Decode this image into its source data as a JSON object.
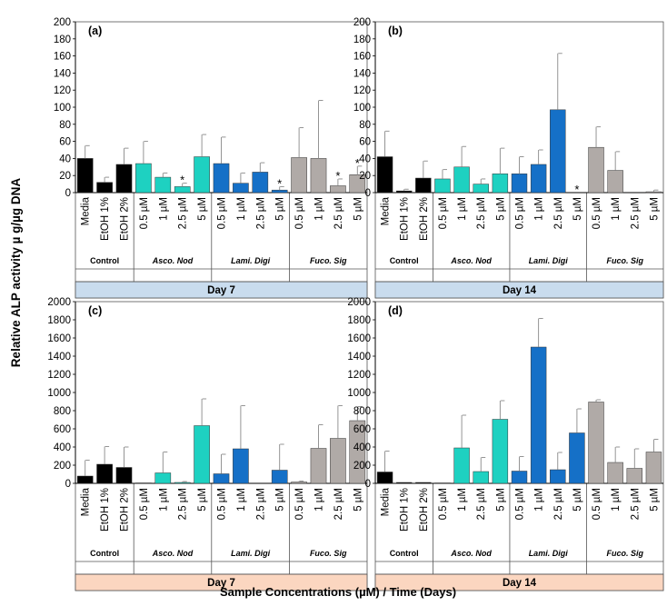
{
  "colors": {
    "control": "#000000",
    "asco": "#1ed1c1",
    "lami": "#1570c7",
    "fuco": "#b0aaa7",
    "day_strip_top": "#c9dcee",
    "day_strip_bottom": "#fbd6c0"
  },
  "y_axis_label": "Relative ALP activity µ g/µg DNA",
  "x_axis_label": "Sample Concentrations (µM) / Time (Days)",
  "group_names": {
    "control": "Control",
    "asco": "Asco. Nod",
    "lami": "Lami. Digi",
    "fuco": "Fuco. Sig"
  },
  "categories": [
    "Media",
    "EtOH 1%",
    "EtOH 2%",
    "0.5 µM",
    "1 µM",
    "2.5 µM",
    "5 µM",
    "0.5 µM",
    "1 µM",
    "2.5 µM",
    "5 µM",
    "0.5 µM",
    "1 µM",
    "2.5 µM",
    "5 µM"
  ],
  "chart_data": [
    {
      "type": "bar",
      "panel": "(a)",
      "day": "Day 7",
      "ylim": [
        0,
        200
      ],
      "yticks": [
        "0",
        "20",
        "40",
        "60",
        "80",
        "100",
        "120",
        "140",
        "160",
        "180",
        "200"
      ],
      "values": [
        40,
        12,
        33,
        34,
        18,
        7,
        42,
        34,
        11,
        24,
        3,
        41,
        40,
        8,
        21
      ],
      "errors": [
        15,
        6,
        19,
        26,
        5,
        4,
        26,
        31,
        12,
        11,
        4,
        35,
        68,
        8,
        10
      ],
      "significant": [
        false,
        false,
        false,
        false,
        false,
        true,
        false,
        false,
        false,
        false,
        true,
        false,
        false,
        true,
        true
      ]
    },
    {
      "type": "bar",
      "panel": "(b)",
      "day": "Day 14",
      "ylim": [
        0,
        200
      ],
      "yticks": [
        "0",
        "20",
        "40",
        "60",
        "80",
        "100",
        "120",
        "140",
        "160",
        "180",
        "200"
      ],
      "values": [
        42,
        2,
        17,
        16,
        30,
        10,
        22,
        22,
        33,
        97,
        0,
        53,
        26,
        0,
        1
      ],
      "errors": [
        30,
        2,
        20,
        11,
        24,
        6,
        30,
        20,
        17,
        66,
        0,
        24,
        22,
        0,
        2
      ],
      "significant": [
        false,
        false,
        false,
        false,
        false,
        false,
        false,
        false,
        false,
        false,
        true,
        false,
        false,
        false,
        false
      ]
    },
    {
      "type": "bar",
      "panel": "(c)",
      "day": "Day 7",
      "ylim": [
        0,
        2000
      ],
      "yticks": [
        "0",
        "200",
        "400",
        "600",
        "800",
        "1000",
        "1200",
        "1400",
        "1600",
        "1800",
        "2000"
      ],
      "values": [
        80,
        210,
        175,
        5,
        115,
        10,
        635,
        105,
        380,
        0,
        145,
        15,
        385,
        495,
        690
      ],
      "errors": [
        175,
        195,
        225,
        0,
        230,
        10,
        295,
        215,
        475,
        0,
        285,
        10,
        260,
        360,
        155
      ],
      "significant": [
        false,
        false,
        false,
        false,
        false,
        false,
        false,
        false,
        false,
        false,
        false,
        false,
        false,
        false,
        false
      ]
    },
    {
      "type": "bar",
      "panel": "(d)",
      "day": "Day 14",
      "ylim": [
        0,
        2000
      ],
      "yticks": [
        "0",
        "200",
        "400",
        "600",
        "800",
        "1000",
        "1200",
        "1400",
        "1600",
        "1800",
        "2000"
      ],
      "values": [
        125,
        10,
        10,
        5,
        390,
        130,
        705,
        135,
        1500,
        150,
        555,
        895,
        230,
        165,
        345
      ],
      "errors": [
        230,
        0,
        0,
        0,
        360,
        155,
        205,
        160,
        315,
        190,
        265,
        25,
        170,
        215,
        140
      ],
      "significant": [
        false,
        false,
        false,
        false,
        false,
        false,
        false,
        false,
        false,
        false,
        false,
        false,
        false,
        false,
        false
      ]
    }
  ]
}
